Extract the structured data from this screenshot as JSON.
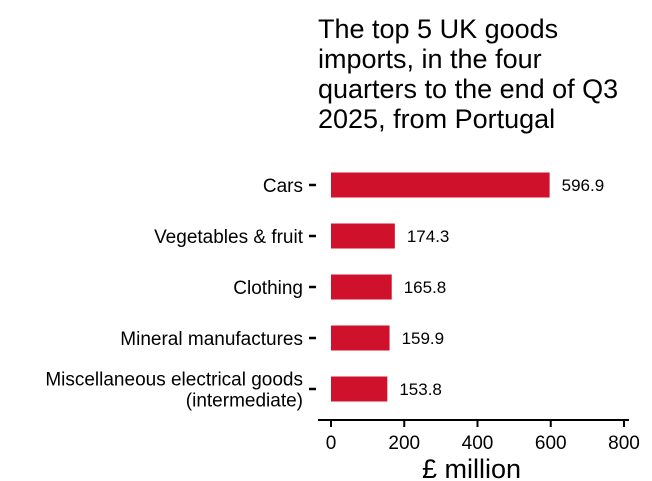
{
  "chart_data": {
    "type": "bar",
    "orientation": "horizontal",
    "title_lines": [
      "The top 5 UK goods",
      "imports, in the four",
      "quarters to the end of Q3",
      "2025, from Portugal"
    ],
    "categories": [
      [
        "Cars"
      ],
      [
        "Vegetables & fruit"
      ],
      [
        "Clothing"
      ],
      [
        "Mineral manufactures"
      ],
      [
        "Miscellaneous electrical goods",
        "(intermediate)"
      ]
    ],
    "values": [
      596.9,
      174.3,
      165.8,
      159.9,
      153.8
    ],
    "value_labels": [
      "596.9",
      "174.3",
      "165.8",
      "159.9",
      "153.8"
    ],
    "xlabel": "£ million",
    "xlim": [
      0,
      800
    ],
    "xticks": [
      0,
      200,
      400,
      600,
      800
    ],
    "xtick_labels": [
      "0",
      "200",
      "400",
      "600",
      "800"
    ],
    "bar_color": "#d0112b",
    "grid": false,
    "legend": "none"
  }
}
